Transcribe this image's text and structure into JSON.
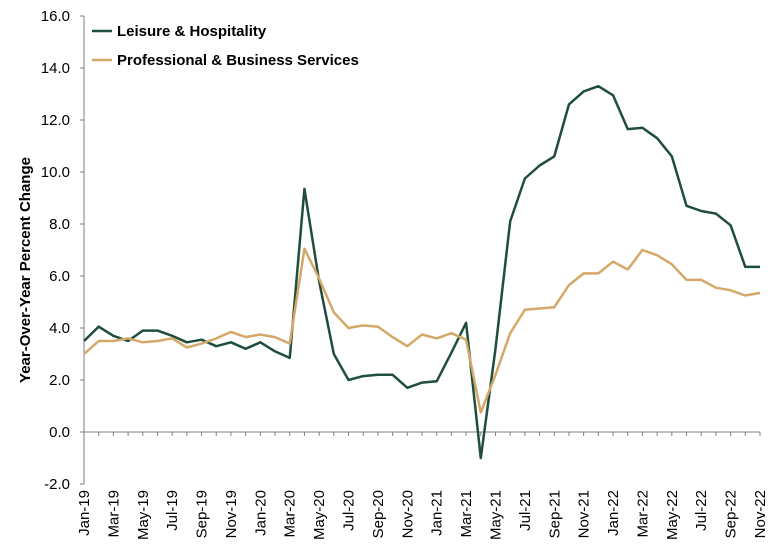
{
  "chart_data": {
    "type": "line",
    "title": "",
    "xlabel": "",
    "ylabel": "Year-Over-Year Percent Change",
    "ylim": [
      -2.0,
      16.0
    ],
    "yticks": [
      "-2.0",
      "0.0",
      "2.0",
      "4.0",
      "6.0",
      "8.0",
      "10.0",
      "12.0",
      "14.0",
      "16.0"
    ],
    "grid": false,
    "legend_position": "top-left",
    "x": [
      "Jan-19",
      "Feb-19",
      "Mar-19",
      "Apr-19",
      "May-19",
      "Jun-19",
      "Jul-19",
      "Aug-19",
      "Sep-19",
      "Oct-19",
      "Nov-19",
      "Dec-19",
      "Jan-20",
      "Feb-20",
      "Mar-20",
      "Apr-20",
      "May-20",
      "Jun-20",
      "Jul-20",
      "Aug-20",
      "Sep-20",
      "Oct-20",
      "Nov-20",
      "Dec-20",
      "Jan-21",
      "Feb-21",
      "Mar-21",
      "Apr-21",
      "May-21",
      "Jun-21",
      "Jul-21",
      "Aug-21",
      "Sep-21",
      "Oct-21",
      "Nov-21",
      "Dec-21",
      "Jan-22",
      "Feb-22",
      "Mar-22",
      "Apr-22",
      "May-22",
      "Jun-22",
      "Jul-22",
      "Aug-22",
      "Sep-22",
      "Oct-22",
      "Nov-22"
    ],
    "x_tick_labels": [
      "Jan-19",
      "Mar-19",
      "May-19",
      "Jul-19",
      "Sep-19",
      "Nov-19",
      "Jan-20",
      "Mar-20",
      "May-20",
      "Jul-20",
      "Sep-20",
      "Nov-20",
      "Jan-21",
      "Mar-21",
      "May-21",
      "Jul-21",
      "Sep-21",
      "Nov-21",
      "Jan-22",
      "Mar-22",
      "May-22",
      "Jul-22",
      "Sep-22",
      "Nov-22"
    ],
    "series": [
      {
        "name": "Leisure & Hospitality",
        "color": "#1f4e3d",
        "values": [
          3.5,
          4.05,
          3.7,
          3.5,
          3.9,
          3.9,
          3.7,
          3.45,
          3.55,
          3.3,
          3.45,
          3.2,
          3.45,
          3.1,
          2.85,
          9.35,
          5.8,
          3.0,
          2.0,
          2.15,
          2.2,
          2.2,
          1.7,
          1.9,
          1.95,
          3.05,
          4.2,
          -1.0,
          3.2,
          8.1,
          9.75,
          10.25,
          10.6,
          12.6,
          13.1,
          13.3,
          12.95,
          11.65,
          11.7,
          11.3,
          10.6,
          8.7,
          8.5,
          8.4,
          7.95,
          6.35,
          6.35
        ]
      },
      {
        "name": "Professional & Business Services",
        "color": "#d4a868",
        "values": [
          3.0,
          3.5,
          3.5,
          3.6,
          3.45,
          3.5,
          3.6,
          3.25,
          3.4,
          3.6,
          3.85,
          3.65,
          3.75,
          3.65,
          3.4,
          7.05,
          5.9,
          4.6,
          4.0,
          4.1,
          4.05,
          3.65,
          3.3,
          3.75,
          3.6,
          3.8,
          3.55,
          0.75,
          2.2,
          3.8,
          4.7,
          4.75,
          4.8,
          5.65,
          6.1,
          6.1,
          6.55,
          6.25,
          7.0,
          6.8,
          6.45,
          5.85,
          5.85,
          5.55,
          5.45,
          5.25,
          5.35
        ]
      }
    ]
  }
}
